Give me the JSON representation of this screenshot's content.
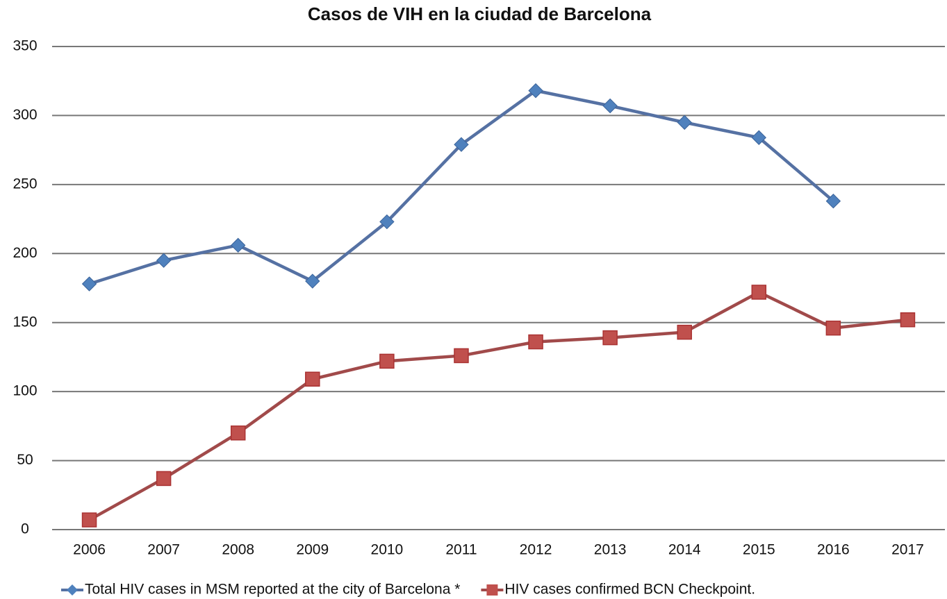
{
  "chart_data": {
    "type": "line",
    "title": "Casos de VIH en la ciudad de Barcelona",
    "categories": [
      "2006",
      "2007",
      "2008",
      "2009",
      "2010",
      "2011",
      "2012",
      "2013",
      "2014",
      "2015",
      "2016",
      "2017"
    ],
    "series": [
      {
        "name": "Total HIV cases in MSM reported at the city of Barcelona *",
        "color": "#4f81bd",
        "marker": "diamond",
        "values": [
          178,
          195,
          206,
          180,
          223,
          279,
          318,
          307,
          295,
          284,
          238,
          null
        ]
      },
      {
        "name": "HIV cases confirmed BCN Checkpoint.",
        "color": "#c0504d",
        "marker": "square",
        "values": [
          7,
          37,
          70,
          109,
          122,
          126,
          136,
          139,
          143,
          172,
          146,
          152
        ]
      }
    ],
    "ylim": [
      0,
      350
    ],
    "yticks": [
      0,
      50,
      100,
      150,
      200,
      250,
      300,
      350
    ],
    "grid": true,
    "legend": "bottom"
  }
}
